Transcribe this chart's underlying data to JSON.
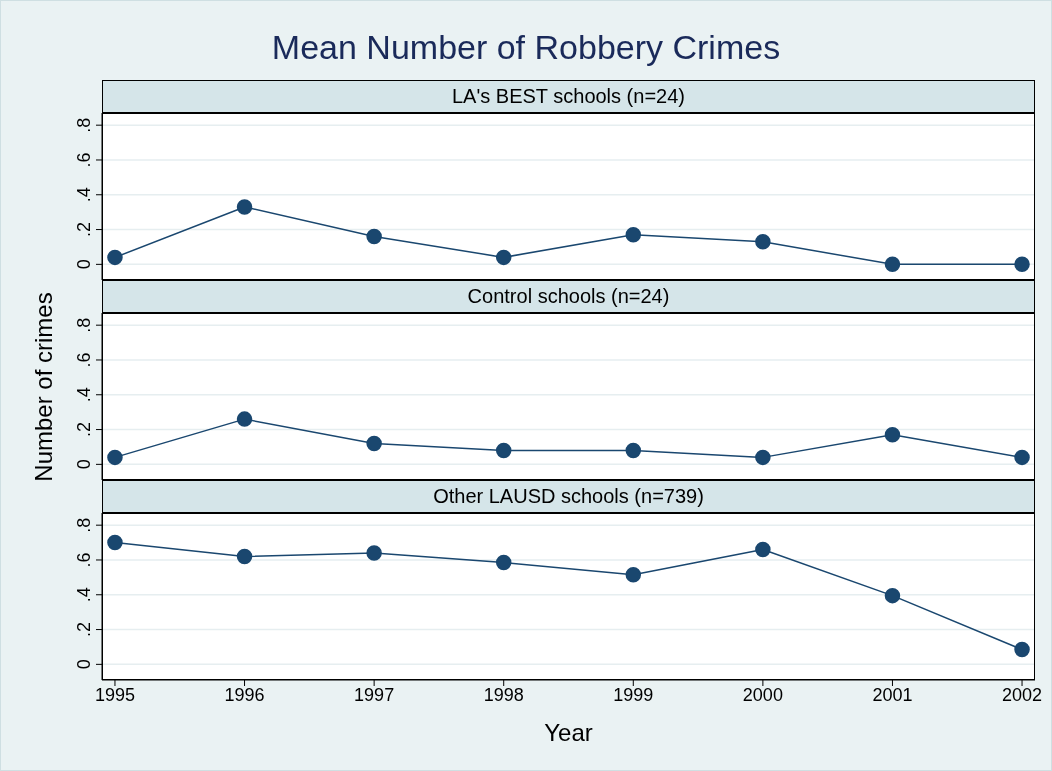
{
  "chart_data": [
    {
      "type": "line",
      "title": "Mean Number of Robbery Crimes",
      "subtitle": "LA's BEST schools (n=24)",
      "x": [
        1995,
        1996,
        1997,
        1998,
        1999,
        2000,
        2001,
        2002
      ],
      "series": [
        {
          "color": "#1a476f",
          "values": [
            0.04,
            0.33,
            0.16,
            0.04,
            0.17,
            0.13,
            0,
            0
          ]
        }
      ],
      "xlim": [
        1994.9,
        2002.1
      ],
      "ylim": [
        -0.09,
        0.87
      ],
      "yticks": [
        {
          "value": 0,
          "label": "0"
        },
        {
          "value": 0.2,
          "label": ".2"
        },
        {
          "value": 0.4,
          "label": ".4"
        },
        {
          "value": 0.6,
          "label": ".6"
        },
        {
          "value": 0.8,
          "label": ".8"
        }
      ],
      "grid": "y",
      "marker": "circle",
      "line_style": "solid",
      "tick_labels": "y"
    },
    {
      "type": "line",
      "subtitle": "Control schools (n=24)",
      "ylabel": "Number of crimes",
      "x": [
        1995,
        1996,
        1997,
        1998,
        1999,
        2000,
        2001,
        2002
      ],
      "series": [
        {
          "color": "#1a476f",
          "values": [
            0.04,
            0.26,
            0.12,
            0.08,
            0.08,
            0.04,
            0.17,
            0.04
          ]
        }
      ],
      "xlim": [
        1994.9,
        2002.1
      ],
      "ylim": [
        -0.09,
        0.87
      ],
      "yticks": [
        {
          "value": 0,
          "label": "0"
        },
        {
          "value": 0.2,
          "label": ".2"
        },
        {
          "value": 0.4,
          "label": ".4"
        },
        {
          "value": 0.6,
          "label": ".6"
        },
        {
          "value": 0.8,
          "label": ".8"
        }
      ],
      "grid": "y",
      "marker": "circle",
      "line_style": "solid",
      "tick_labels": "y"
    },
    {
      "type": "line",
      "subtitle": "Other LAUSD schools (n=739)",
      "xlabel": "Year",
      "x": [
        1995,
        1996,
        1997,
        1998,
        1999,
        2000,
        2001,
        2002
      ],
      "series": [
        {
          "color": "#1a476f",
          "values": [
            0.7,
            0.62,
            0.64,
            0.585,
            0.515,
            0.66,
            0.395,
            0.085
          ]
        }
      ],
      "xlim": [
        1994.9,
        2002.1
      ],
      "xticks": [
        1995,
        1996,
        1997,
        1998,
        1999,
        2000,
        2001,
        2002
      ],
      "ylim": [
        -0.09,
        0.87
      ],
      "yticks": [
        {
          "value": 0,
          "label": "0"
        },
        {
          "value": 0.2,
          "label": ".2"
        },
        {
          "value": 0.4,
          "label": ".4"
        },
        {
          "value": 0.6,
          "label": ".6"
        },
        {
          "value": 0.8,
          "label": ".8"
        }
      ],
      "grid": "y",
      "marker": "circle",
      "line_style": "solid"
    }
  ]
}
